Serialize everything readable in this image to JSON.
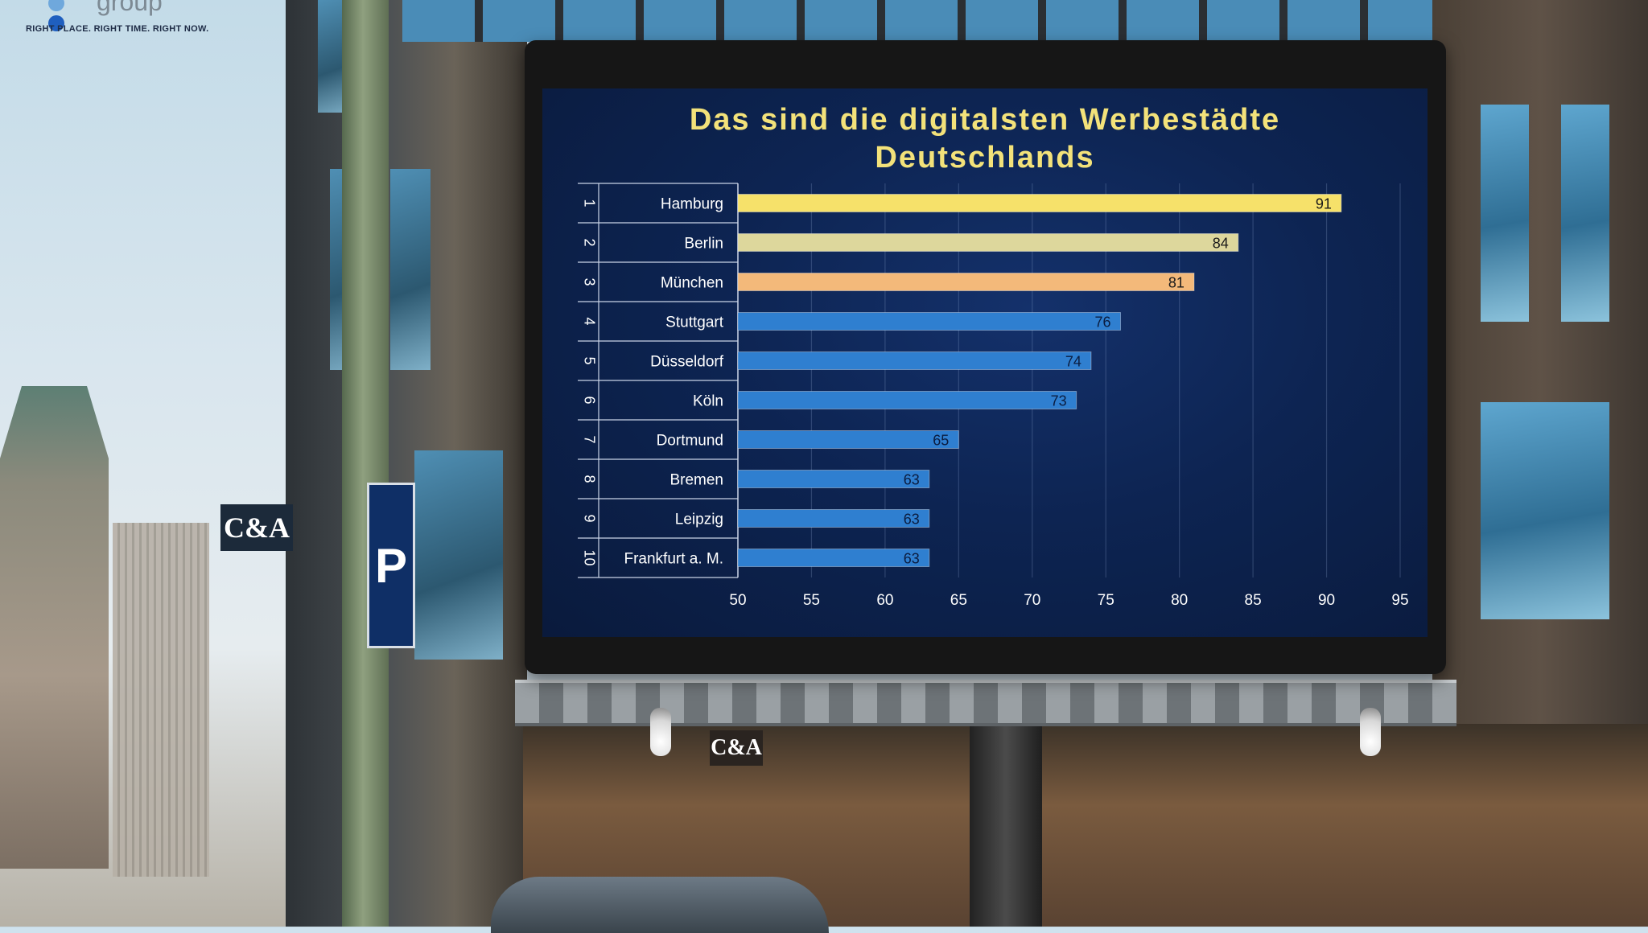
{
  "logo": {
    "word": "group",
    "tagline": "RIGHT PLACE. RIGHT TIME. RIGHT NOW.",
    "dot_colors": [
      "#6fa8dc",
      "#1f5fbf"
    ]
  },
  "signs": {
    "ca_left": "C&A",
    "ca_store": "C&A",
    "parking": "P"
  },
  "chart_data": {
    "type": "bar",
    "orientation": "horizontal",
    "title": [
      "Das sind die digitalsten Werbestädte",
      "Deutschlands"
    ],
    "ranks": [
      "1",
      "2",
      "3",
      "4",
      "5",
      "6",
      "7",
      "8",
      "9",
      "10"
    ],
    "categories": [
      "Hamburg",
      "Berlin",
      "München",
      "Stuttgart",
      "Düsseldorf",
      "Köln",
      "Dortmund",
      "Bremen",
      "Leipzig",
      "Frankfurt a. M."
    ],
    "values": [
      91,
      84,
      81,
      76,
      74,
      73,
      65,
      63,
      63,
      63
    ],
    "bar_colors": [
      "#f6e16a",
      "#ddd79c",
      "#f3b97a",
      "#2f7fd0",
      "#2f7fd0",
      "#2f7fd0",
      "#2f7fd0",
      "#2f7fd0",
      "#2f7fd0",
      "#2f7fd0"
    ],
    "xlim": [
      50,
      95
    ],
    "xticks": [
      "50",
      "55",
      "60",
      "65",
      "70",
      "75",
      "80",
      "85",
      "90",
      "95"
    ],
    "grid": true,
    "colors": {
      "title": "#f3e27a",
      "background": "#0d2452",
      "axis_text": "#ffffff",
      "value_label_light": "#1a1a1a",
      "value_label_dark": "#0b1c3f"
    }
  }
}
